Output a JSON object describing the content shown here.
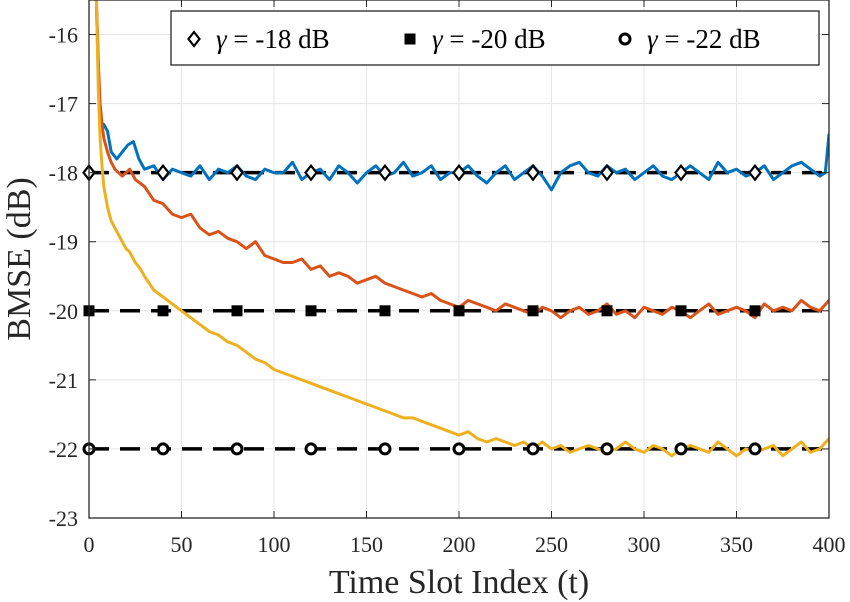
{
  "chart_data": {
    "type": "line",
    "title": "",
    "xlabel": "Time Slot Index (t)",
    "ylabel": "BMSE (dB)",
    "xlim": [
      0,
      400
    ],
    "ylim": [
      -23,
      -15.5
    ],
    "xticks": [
      0,
      50,
      100,
      150,
      200,
      250,
      300,
      350,
      400
    ],
    "yticks": [
      -16,
      -17,
      -18,
      -19,
      -20,
      -21,
      -22,
      -23
    ],
    "grid": true,
    "legend_position": "top-right",
    "reference_lines": [
      {
        "name": "γ = -18 dB",
        "symbol": "γ",
        "rest": " = -18 dB",
        "y": -18,
        "marker": "diamond",
        "marker_x": [
          0,
          40,
          80,
          120,
          160,
          200,
          240,
          280,
          320,
          360
        ]
      },
      {
        "name": "γ = -20 dB",
        "symbol": "γ",
        "rest": " = -20 dB",
        "y": -20,
        "marker": "square",
        "marker_x": [
          0,
          40,
          80,
          120,
          160,
          200,
          240,
          280,
          320,
          360
        ]
      },
      {
        "name": "γ = -22 dB",
        "symbol": "γ",
        "rest": " = -22 dB",
        "y": -22,
        "marker": "circle",
        "marker_x": [
          0,
          40,
          80,
          120,
          160,
          200,
          240,
          280,
          320,
          360
        ]
      }
    ],
    "series": [
      {
        "name": "blue",
        "color": "#0072BD",
        "x": [
          4,
          6,
          8,
          10,
          12,
          15,
          18,
          21,
          24,
          27,
          30,
          35,
          40,
          45,
          50,
          55,
          60,
          65,
          70,
          75,
          80,
          85,
          90,
          95,
          100,
          105,
          110,
          115,
          120,
          125,
          130,
          135,
          140,
          145,
          150,
          155,
          160,
          165,
          170,
          175,
          180,
          185,
          190,
          195,
          200,
          205,
          210,
          215,
          220,
          225,
          230,
          235,
          240,
          245,
          250,
          255,
          260,
          265,
          270,
          275,
          280,
          285,
          290,
          295,
          300,
          305,
          310,
          315,
          320,
          325,
          330,
          335,
          340,
          345,
          350,
          355,
          360,
          365,
          370,
          375,
          380,
          385,
          390,
          395,
          398,
          400
        ],
        "y": [
          -15.6,
          -17.3,
          -17.3,
          -17.4,
          -17.7,
          -17.8,
          -17.7,
          -17.6,
          -17.55,
          -17.8,
          -17.95,
          -17.9,
          -18.1,
          -17.95,
          -18.0,
          -18.05,
          -17.9,
          -18.1,
          -17.95,
          -18.0,
          -17.9,
          -18.05,
          -18.1,
          -17.95,
          -18.0,
          -18.0,
          -17.85,
          -18.1,
          -18.0,
          -17.95,
          -18.1,
          -17.9,
          -18.0,
          -18.15,
          -18.0,
          -17.9,
          -18.05,
          -18.0,
          -17.85,
          -18.05,
          -18.0,
          -17.9,
          -18.1,
          -18.0,
          -18.0,
          -17.9,
          -18.05,
          -18.15,
          -18.0,
          -17.9,
          -18.1,
          -18.0,
          -17.9,
          -18.05,
          -18.25,
          -18.0,
          -17.9,
          -17.85,
          -18.0,
          -18.05,
          -17.9,
          -18.0,
          -17.95,
          -18.1,
          -18.0,
          -17.9,
          -18.05,
          -18.1,
          -18.0,
          -17.9,
          -18.0,
          -18.1,
          -17.85,
          -18.0,
          -17.95,
          -18.05,
          -18.0,
          -17.9,
          -18.1,
          -18.0,
          -17.9,
          -17.85,
          -17.95,
          -18.05,
          -18.0,
          -17.45
        ]
      },
      {
        "name": "orange",
        "color": "#D95319",
        "x": [
          4,
          5,
          6,
          7,
          8,
          10,
          12,
          14,
          16,
          18,
          20,
          22,
          25,
          30,
          35,
          40,
          45,
          50,
          55,
          60,
          65,
          70,
          75,
          80,
          85,
          90,
          95,
          100,
          105,
          110,
          115,
          120,
          125,
          130,
          135,
          140,
          145,
          150,
          155,
          160,
          165,
          170,
          175,
          180,
          185,
          190,
          195,
          200,
          205,
          210,
          215,
          220,
          225,
          230,
          235,
          240,
          245,
          250,
          255,
          260,
          265,
          270,
          275,
          280,
          285,
          290,
          295,
          300,
          305,
          310,
          315,
          320,
          325,
          330,
          335,
          340,
          345,
          350,
          355,
          360,
          365,
          370,
          375,
          380,
          385,
          390,
          395,
          400
        ],
        "y": [
          -15.5,
          -16.4,
          -17.0,
          -17.3,
          -17.5,
          -17.7,
          -17.85,
          -17.95,
          -18.0,
          -18.05,
          -18.0,
          -17.95,
          -18.1,
          -18.2,
          -18.4,
          -18.45,
          -18.6,
          -18.65,
          -18.6,
          -18.8,
          -18.9,
          -18.85,
          -18.95,
          -19.0,
          -19.1,
          -19.0,
          -19.2,
          -19.25,
          -19.3,
          -19.3,
          -19.25,
          -19.4,
          -19.35,
          -19.5,
          -19.45,
          -19.5,
          -19.6,
          -19.55,
          -19.5,
          -19.6,
          -19.65,
          -19.7,
          -19.75,
          -19.8,
          -19.75,
          -19.85,
          -19.9,
          -19.95,
          -19.85,
          -19.9,
          -19.95,
          -20.0,
          -19.9,
          -19.95,
          -20.0,
          -20.05,
          -19.95,
          -20.0,
          -20.1,
          -20.0,
          -19.95,
          -20.05,
          -20.0,
          -19.9,
          -20.05,
          -20.0,
          -20.1,
          -19.95,
          -20.0,
          -20.05,
          -19.95,
          -20.0,
          -20.1,
          -20.0,
          -19.9,
          -20.05,
          -20.0,
          -19.95,
          -20.0,
          -20.1,
          -19.9,
          -20.0,
          -19.95,
          -20.0,
          -19.85,
          -19.95,
          -20.0,
          -19.85
        ]
      },
      {
        "name": "yellow",
        "color": "#EDB120",
        "x": [
          4,
          5,
          6,
          7,
          8,
          10,
          12,
          14,
          16,
          18,
          20,
          22,
          25,
          28,
          30,
          35,
          40,
          45,
          50,
          55,
          60,
          65,
          70,
          75,
          80,
          85,
          90,
          95,
          100,
          105,
          110,
          115,
          120,
          125,
          130,
          135,
          140,
          145,
          150,
          155,
          160,
          165,
          170,
          175,
          180,
          185,
          190,
          195,
          200,
          205,
          210,
          215,
          220,
          225,
          230,
          235,
          240,
          245,
          250,
          255,
          260,
          265,
          270,
          275,
          280,
          285,
          290,
          295,
          300,
          305,
          310,
          315,
          320,
          325,
          330,
          335,
          340,
          345,
          350,
          355,
          360,
          365,
          370,
          375,
          380,
          385,
          390,
          395,
          400
        ],
        "y": [
          -15.5,
          -16.8,
          -17.5,
          -17.9,
          -18.2,
          -18.5,
          -18.7,
          -18.8,
          -18.9,
          -19.0,
          -19.1,
          -19.15,
          -19.3,
          -19.4,
          -19.5,
          -19.7,
          -19.8,
          -19.9,
          -20.0,
          -20.1,
          -20.2,
          -20.3,
          -20.35,
          -20.45,
          -20.5,
          -20.6,
          -20.7,
          -20.75,
          -20.85,
          -20.9,
          -20.95,
          -21.0,
          -21.05,
          -21.1,
          -21.15,
          -21.2,
          -21.25,
          -21.3,
          -21.35,
          -21.4,
          -21.45,
          -21.5,
          -21.55,
          -21.55,
          -21.6,
          -21.65,
          -21.7,
          -21.75,
          -21.8,
          -21.75,
          -21.85,
          -21.9,
          -21.85,
          -21.9,
          -21.95,
          -21.9,
          -22.0,
          -21.9,
          -22.0,
          -21.95,
          -22.05,
          -22.0,
          -21.95,
          -22.0,
          -22.05,
          -22.0,
          -21.9,
          -22.0,
          -22.05,
          -21.95,
          -22.0,
          -22.1,
          -22.0,
          -21.95,
          -22.0,
          -22.05,
          -21.9,
          -22.0,
          -22.1,
          -22.0,
          -22.05,
          -22.0,
          -21.95,
          -22.1,
          -22.0,
          -21.9,
          -22.05,
          -22.0,
          -21.85
        ]
      }
    ]
  }
}
